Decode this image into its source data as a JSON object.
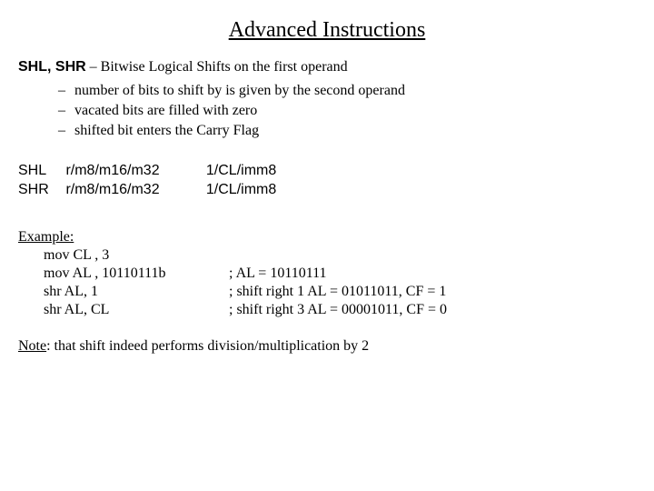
{
  "title": "Advanced Instructions",
  "heading": {
    "mnemonic": "SHL, SHR",
    "sep": " – ",
    "desc": "Bitwise Logical Shifts on the first operand"
  },
  "bullets": [
    "number of bits to shift by is given by the second operand",
    "vacated bits are filled with zero",
    "shifted bit enters the Carry Flag"
  ],
  "syntax": [
    {
      "op": "SHL",
      "arg1": "r/m8/m16/m32",
      "arg2": "1/CL/imm8"
    },
    {
      "op": "SHR",
      "arg1": "r/m8/m16/m32",
      "arg2": "1/CL/imm8"
    }
  ],
  "example": {
    "label": "Example:",
    "lines": [
      {
        "code": "mov CL , 3",
        "comment": ""
      },
      {
        "code": "mov AL , 10110111b",
        "comment": "; AL = 10110111"
      },
      {
        "code": "shr  AL, 1",
        "comment": "; shift right 1 AL = 01011011, CF = 1"
      },
      {
        "code": "shr AL, CL",
        "comment": "; shift right 3 AL = 00001011, CF = 0"
      }
    ]
  },
  "note": {
    "label": "Note",
    "text": ": that shift indeed performs division/multiplication by 2"
  }
}
